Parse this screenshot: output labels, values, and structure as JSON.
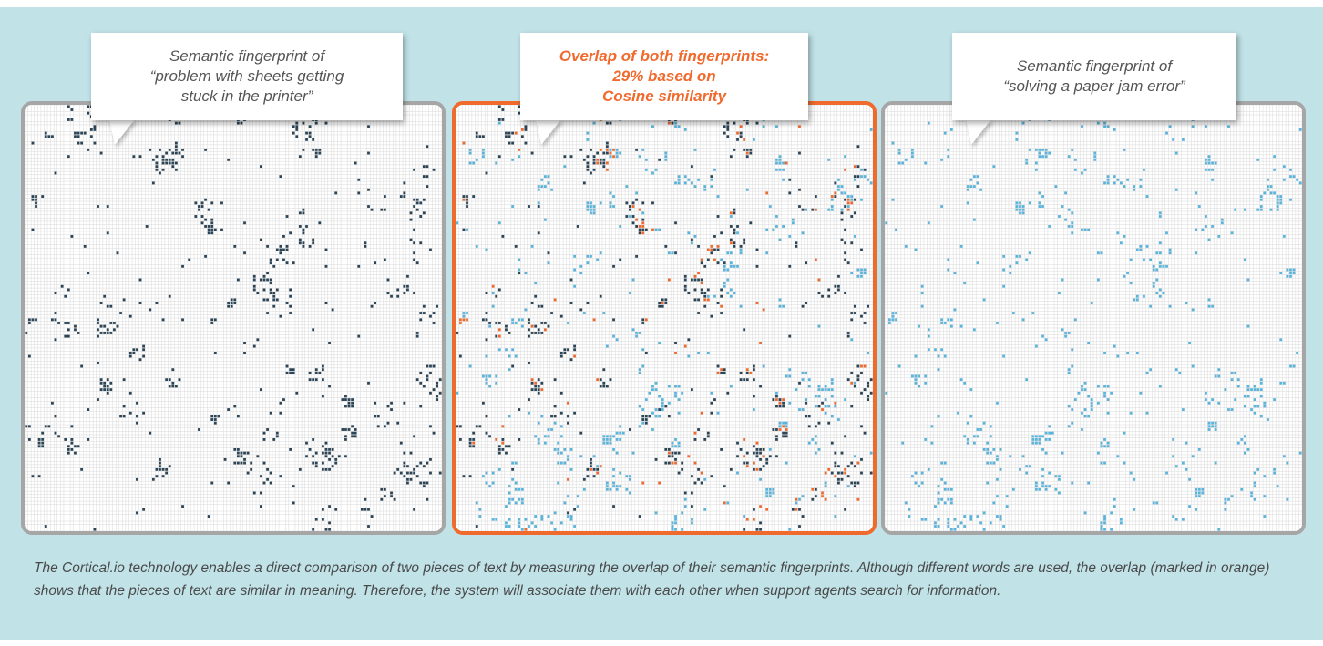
{
  "callouts": [
    {
      "lines": [
        "Semantic fingerprint of",
        "“problem with sheets getting",
        "stuck in the printer”"
      ]
    },
    {
      "lines": [
        "Overlap of both fingerprints:",
        "29% based on",
        "Cosine similarity"
      ]
    },
    {
      "lines": [
        "Semantic fingerprint of",
        "“solving a paper jam error”"
      ]
    }
  ],
  "caption": "The Cortical.io technology enables a direct comparison of two pieces of text by measuring the overlap of their semantic fingerprints. Although different words are used, the overlap (marked in orange) shows that the pieces of text are similar in meaning. Therefore, the system will associate them with each other when support agents search for information.",
  "colors": {
    "background": "#c1e3e8",
    "grid_line": "#d9d9d9",
    "cell": "#ffffff",
    "fingerprint_a": "#2b4456",
    "fingerprint_b": "#5ab4db",
    "overlap": "#f06a2e",
    "panel_border": "#a6a6a6",
    "overlap_border": "#f06a2e"
  },
  "grid": {
    "cols": 128,
    "rows": 128
  }
}
